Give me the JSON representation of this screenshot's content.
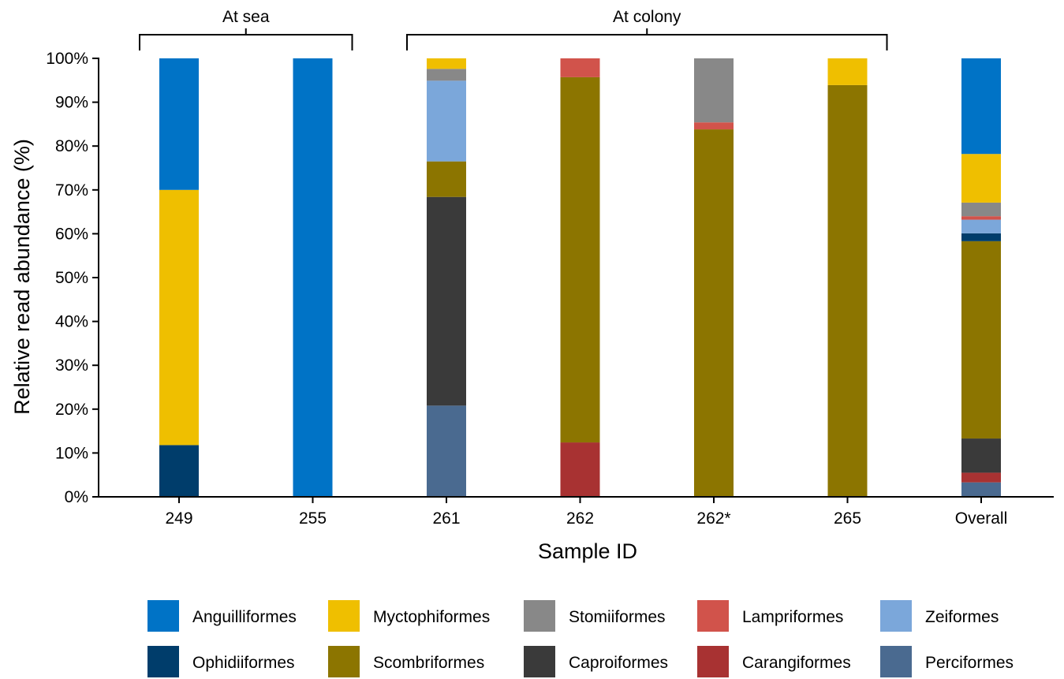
{
  "chart_data": {
    "type": "bar",
    "stacked": true,
    "title": "",
    "xlabel": "Sample ID",
    "ylabel": "Relative read abundance (%)",
    "ylim": [
      0,
      100
    ],
    "yticks": [
      0,
      10,
      20,
      30,
      40,
      50,
      60,
      70,
      80,
      90,
      100
    ],
    "ytick_labels": [
      "0%",
      "10%",
      "20%",
      "30%",
      "40%",
      "50%",
      "60%",
      "70%",
      "80%",
      "90%",
      "100%"
    ],
    "categories": [
      "249",
      "255",
      "261",
      "262",
      "262*",
      "265",
      "Overall"
    ],
    "groups": [
      {
        "label": "At sea",
        "from": "249",
        "to": "255"
      },
      {
        "label": "At colony",
        "from": "261",
        "to": "265"
      }
    ],
    "grid": false,
    "legend_position": "bottom",
    "series": [
      {
        "name": "Perciformes",
        "color": "#4A6A90",
        "values": [
          0,
          0,
          20.8,
          0,
          0,
          0,
          3.3
        ]
      },
      {
        "name": "Carangiformes",
        "color": "#A83232",
        "values": [
          0,
          0,
          0,
          12.4,
          0,
          0,
          2.2
        ]
      },
      {
        "name": "Caproiformes",
        "color": "#3A3A3A",
        "values": [
          0,
          0,
          47.6,
          0,
          0,
          0,
          7.8
        ]
      },
      {
        "name": "Scombriformes",
        "color": "#8C7500",
        "values": [
          0,
          0,
          8.1,
          83.3,
          83.8,
          93.9,
          45.0
        ]
      },
      {
        "name": "Ophidiiformes",
        "color": "#003D6B",
        "values": [
          11.8,
          0,
          0,
          0,
          0,
          0,
          1.8
        ]
      },
      {
        "name": "Zeiformes",
        "color": "#7BA7DA",
        "values": [
          0,
          0,
          18.4,
          0,
          0,
          0,
          3.1
        ]
      },
      {
        "name": "Lampriformes",
        "color": "#D1534B",
        "values": [
          0,
          0,
          0,
          4.3,
          1.6,
          0,
          0.8
        ]
      },
      {
        "name": "Stomiiformes",
        "color": "#888888",
        "values": [
          0,
          0,
          2.7,
          0,
          14.6,
          0,
          3.1
        ]
      },
      {
        "name": "Myctophiformes",
        "color": "#EFBF00",
        "values": [
          58.2,
          0,
          2.4,
          0,
          0,
          6.1,
          11.1
        ]
      },
      {
        "name": "Anguilliformes",
        "color": "#0073C6",
        "values": [
          30.0,
          100,
          0,
          0,
          0,
          0,
          21.8
        ]
      }
    ],
    "legend_order": [
      "Anguilliformes",
      "Myctophiformes",
      "Stomiiformes",
      "Lampriformes",
      "Zeiformes",
      "Ophidiiformes",
      "Scombriformes",
      "Caproiformes",
      "Carangiformes",
      "Perciformes"
    ]
  }
}
